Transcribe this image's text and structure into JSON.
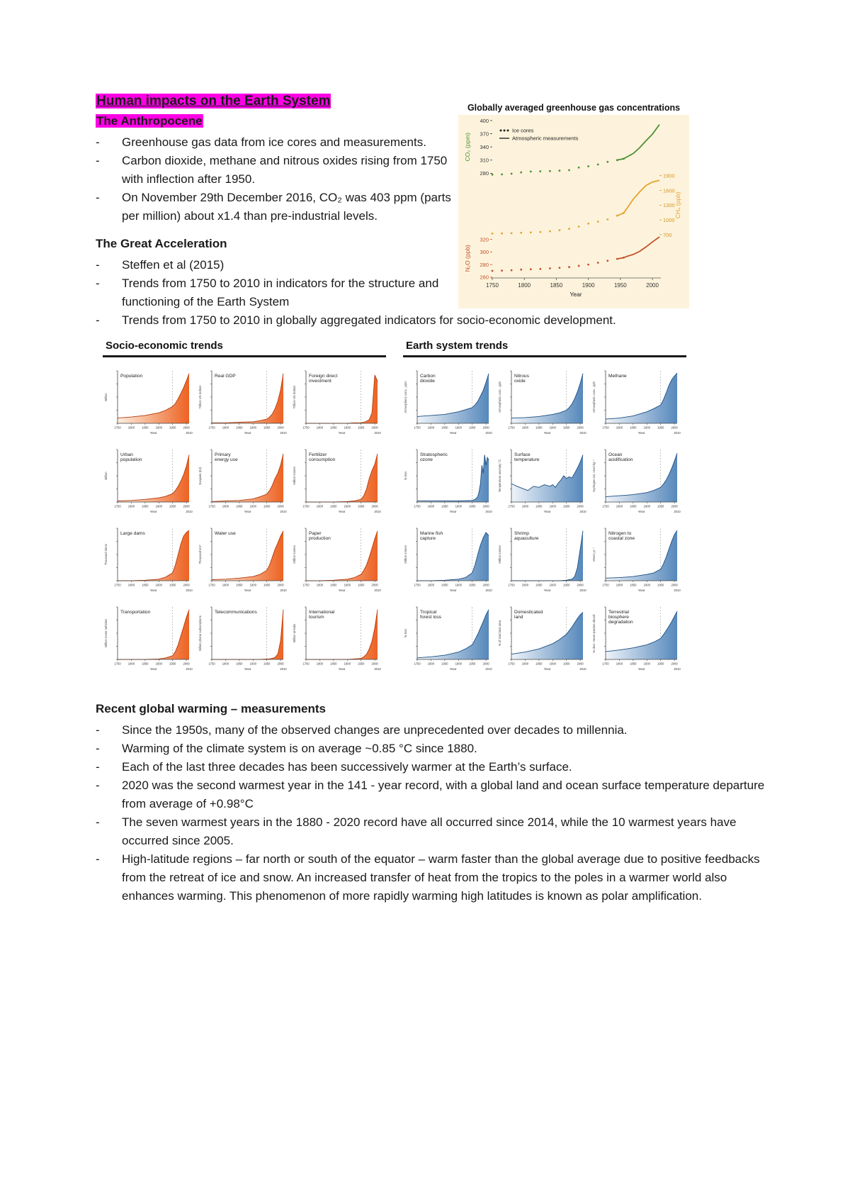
{
  "header": {
    "title": "Human impacts on the Earth System",
    "subheading": "The Anthropocene",
    "bullets": [
      "Greenhouse gas data from ice cores and measurements.",
      "Carbon dioxide, methane and nitrous oxides rising from 1750 with inflection after 1950.",
      "On November 29th December 2016, CO₂ was 403 ppm (parts per million) about x1.4 than pre-industrial levels."
    ]
  },
  "acceleration": {
    "heading": "The Great Acceleration",
    "bullets": [
      "Steffen et al (2015)",
      "Trends from 1750 to 2010 in indicators for the structure and functioning of the Earth System",
      "Trends from 1750 to 2010 in globally aggregated indicators for socio-economic development."
    ]
  },
  "figure": {
    "left_header": "Socio-economic trends",
    "right_header": "Earth system trends"
  },
  "warming": {
    "heading": "Recent global warming – measurements",
    "bullets": [
      "Since the 1950s, many of the observed changes are unprecedented over decades to millennia.",
      "Warming of the climate system is on average ~0.85 °C since 1880.",
      "Each of the last three decades has been successively warmer at the Earth’s surface.",
      "2020 was the second warmest year in the 141 - year record, with a global land and ocean surface temperature departure from average of +0.98°C",
      "The seven warmest years in the 1880 - 2020 record have all occurred since 2014, while the 10 warmest years have occurred since 2005.",
      "High-latitude regions – far north or south of the equator – warm faster than the global average due to positive feedbacks from the retreat of ice and snow. An increased transfer of heat from the tropics to the poles in a warmer world also enhances warming. This phenomenon of more rapidly warming high latitudes is known as polar amplification."
    ]
  },
  "colors": {
    "highlight": "#ff00e6",
    "chart_bg": "#fdf3dc",
    "socio_fill_from": "#fdeede",
    "socio_fill_to": "#ec5a17",
    "socio_line": "#b23a0a",
    "earth_fill_from": "#eef3f9",
    "earth_fill_to": "#4d82b8",
    "earth_line": "#1c4d80"
  },
  "chart_data": [
    {
      "type": "line",
      "title": "Globally averaged greenhouse gas concentrations",
      "xlabel": "Year",
      "x_ticks": [
        1750,
        1800,
        1850,
        1900,
        1950,
        2000
      ],
      "xlim": [
        1750,
        2011
      ],
      "legend": [
        {
          "label": "Ice cores",
          "marker": "dots"
        },
        {
          "label": "Atmospheric measurements",
          "marker": "line"
        }
      ],
      "series": [
        {
          "name": "CO₂ (ppm)",
          "color": "#4a9032",
          "tick_color": "#333333",
          "side": "left",
          "ticks": [
            280,
            310,
            340,
            370,
            400
          ],
          "ymap": [
            [
              280,
              0.335
            ],
            [
              400,
              0.0
            ]
          ],
          "x": [
            1750,
            1765,
            1780,
            1795,
            1810,
            1825,
            1840,
            1855,
            1870,
            1885,
            1900,
            1915,
            1930,
            1945,
            1955,
            1960,
            1970,
            1980,
            1990,
            2000,
            2011
          ],
          "values": [
            277,
            277.5,
            279,
            282,
            284,
            284.5,
            285,
            286,
            287,
            293,
            296,
            300,
            306,
            310,
            313,
            317,
            325,
            338,
            354,
            369,
            391
          ]
        },
        {
          "name": "CH₄ (ppb)",
          "color": "#e5a230",
          "tick_color": "#d3952a",
          "side": "right",
          "ticks": [
            700,
            1000,
            1300,
            1600,
            1900
          ],
          "ymap": [
            [
              700,
              0.725
            ],
            [
              1900,
              0.35
            ]
          ],
          "x": [
            1750,
            1765,
            1780,
            1795,
            1810,
            1825,
            1840,
            1855,
            1870,
            1885,
            1900,
            1915,
            1930,
            1945,
            1955,
            1960,
            1970,
            1980,
            1990,
            2000,
            2011
          ],
          "values": [
            722,
            725,
            730,
            738,
            745,
            755,
            770,
            790,
            820,
            865,
            925,
            965,
            1010,
            1085,
            1140,
            1230,
            1420,
            1570,
            1700,
            1770,
            1803
          ]
        },
        {
          "name": "N₂O (ppb)",
          "color": "#c3502b",
          "tick_color": "#c3502b",
          "side": "left",
          "ticks": [
            260,
            280,
            300,
            320
          ],
          "ymap": [
            [
              260,
              0.995
            ],
            [
              320,
              0.755
            ]
          ],
          "x": [
            1750,
            1765,
            1780,
            1795,
            1810,
            1825,
            1840,
            1855,
            1870,
            1885,
            1900,
            1915,
            1930,
            1945,
            1955,
            1960,
            1970,
            1980,
            1990,
            2000,
            2011
          ],
          "values": [
            270,
            270.5,
            271,
            272,
            272.5,
            273,
            274,
            275,
            276,
            278,
            280,
            283,
            286,
            289,
            291,
            293,
            296,
            301,
            308,
            316,
            324
          ]
        }
      ]
    },
    {
      "type": "area",
      "title": "Socio-economic trends",
      "xlabel": "Year",
      "x_ticks": [
        1750,
        1800,
        1850,
        1900,
        1950,
        2000
      ],
      "x_end_label": "2010",
      "x_default": [
        1750,
        1800,
        1850,
        1900,
        1925,
        1950,
        1960,
        1970,
        1980,
        1990,
        2000,
        2010
      ],
      "charts": [
        {
          "title": [
            "Population"
          ],
          "ylabel": "Billion",
          "values": [
            0.1,
            0.12,
            0.15,
            0.2,
            0.25,
            0.32,
            0.38,
            0.47,
            0.57,
            0.68,
            0.81,
            0.95
          ]
        },
        {
          "title": [
            "Real GDP"
          ],
          "ylabel": "Trillion US dollars",
          "values": [
            0.01,
            0.01,
            0.02,
            0.03,
            0.05,
            0.08,
            0.12,
            0.18,
            0.28,
            0.42,
            0.63,
            0.95
          ]
        },
        {
          "title": [
            "Foreign direct",
            "investment"
          ],
          "ylabel": "Trillion US dollars",
          "values": [
            0.0,
            0.0,
            0.0,
            0.0,
            0.01,
            0.01,
            0.02,
            0.04,
            0.07,
            0.2,
            0.92,
            0.8
          ]
        },
        {
          "title": [
            "Urban",
            "population"
          ],
          "ylabel": "Billion",
          "values": [
            0.02,
            0.03,
            0.05,
            0.08,
            0.11,
            0.16,
            0.22,
            0.3,
            0.4,
            0.52,
            0.68,
            0.9
          ]
        },
        {
          "title": [
            "Primary",
            "energy use"
          ],
          "ylabel": "Exajoule (EJ)",
          "values": [
            0.01,
            0.02,
            0.03,
            0.06,
            0.1,
            0.15,
            0.22,
            0.32,
            0.45,
            0.55,
            0.7,
            0.92
          ]
        },
        {
          "title": [
            "Fertilizer",
            "consumption"
          ],
          "ylabel": "Million tonnes",
          "values": [
            0.0,
            0.0,
            0.0,
            0.01,
            0.02,
            0.05,
            0.12,
            0.25,
            0.45,
            0.6,
            0.72,
            0.92
          ]
        },
        {
          "title": [
            "Large dams"
          ],
          "ylabel": "Thousand dams",
          "values": [
            0.0,
            0.0,
            0.01,
            0.03,
            0.07,
            0.15,
            0.3,
            0.5,
            0.7,
            0.85,
            0.92,
            0.96
          ]
        },
        {
          "title": [
            "Water use"
          ],
          "ylabel": "Thousand km³",
          "values": [
            0.02,
            0.03,
            0.05,
            0.08,
            0.12,
            0.2,
            0.3,
            0.45,
            0.6,
            0.72,
            0.85,
            0.95
          ]
        },
        {
          "title": [
            "Paper",
            "production"
          ],
          "ylabel": "Million tonnes",
          "values": [
            0.0,
            0.0,
            0.01,
            0.03,
            0.06,
            0.12,
            0.2,
            0.3,
            0.45,
            0.62,
            0.8,
            0.95
          ]
        },
        {
          "title": [
            "Transportation"
          ],
          "ylabel": "Million motor vehicles",
          "values": [
            0.0,
            0.0,
            0.0,
            0.01,
            0.03,
            0.07,
            0.15,
            0.28,
            0.45,
            0.62,
            0.8,
            0.95
          ]
        },
        {
          "title": [
            "Telecommunications"
          ],
          "ylabel": "Billion phone subscriptions",
          "values": [
            0,
            0,
            0,
            0,
            0,
            0.01,
            0.01,
            0.02,
            0.04,
            0.1,
            0.35,
            0.95
          ]
        },
        {
          "title": [
            "International",
            "tourism"
          ],
          "ylabel": "Million arrivals",
          "values": [
            0,
            0,
            0,
            0,
            0.01,
            0.02,
            0.05,
            0.1,
            0.2,
            0.35,
            0.6,
            0.95
          ]
        }
      ]
    },
    {
      "type": "area",
      "title": "Earth system trends",
      "xlabel": "Year",
      "x_ticks": [
        1750,
        1800,
        1850,
        1900,
        1950,
        2000
      ],
      "x_end_label": "2010",
      "x_default": [
        1750,
        1800,
        1850,
        1900,
        1925,
        1950,
        1960,
        1970,
        1980,
        1990,
        2000,
        2010
      ],
      "charts": [
        {
          "title": [
            "Carbon",
            "dioxide"
          ],
          "ylabel": "Atmospheric conc., ppm",
          "values": [
            0.13,
            0.15,
            0.17,
            0.22,
            0.26,
            0.3,
            0.35,
            0.42,
            0.52,
            0.63,
            0.78,
            0.95
          ]
        },
        {
          "title": [
            "Nitrous",
            "oxide"
          ],
          "ylabel": "Atmospheric conc., ppb",
          "values": [
            0.1,
            0.11,
            0.13,
            0.17,
            0.2,
            0.25,
            0.3,
            0.37,
            0.47,
            0.6,
            0.76,
            0.95
          ]
        },
        {
          "title": [
            "Methane"
          ],
          "ylabel": "Atmospheric conc., ppb",
          "values": [
            0.08,
            0.1,
            0.14,
            0.22,
            0.28,
            0.35,
            0.45,
            0.58,
            0.72,
            0.83,
            0.9,
            0.96
          ]
        },
        {
          "title": [
            "Stratospheric",
            "ozone"
          ],
          "ylabel": "% loss",
          "x": [
            1750,
            1900,
            1950,
            1960,
            1970,
            1975,
            1980,
            1985,
            1990,
            1995,
            2000,
            2005,
            2010
          ],
          "values": [
            0.02,
            0.02,
            0.03,
            0.05,
            0.1,
            0.2,
            0.35,
            0.7,
            0.55,
            0.9,
            0.7,
            0.85,
            0.8
          ]
        },
        {
          "title": [
            "Surface",
            "temperature"
          ],
          "ylabel": "Temperature anomaly °C",
          "x": [
            1750,
            1770,
            1790,
            1810,
            1830,
            1850,
            1870,
            1890,
            1900,
            1910,
            1920,
            1930,
            1940,
            1950,
            1960,
            1970,
            1980,
            1990,
            2000,
            2010
          ],
          "values": [
            0.35,
            0.3,
            0.26,
            0.22,
            0.3,
            0.28,
            0.33,
            0.3,
            0.33,
            0.28,
            0.36,
            0.42,
            0.5,
            0.45,
            0.48,
            0.46,
            0.55,
            0.65,
            0.76,
            0.9
          ]
        },
        {
          "title": [
            "Ocean",
            "acidification"
          ],
          "ylabel": "Hydrogen ion, nmol kg⁻¹",
          "values": [
            0.1,
            0.12,
            0.14,
            0.18,
            0.22,
            0.28,
            0.34,
            0.42,
            0.52,
            0.64,
            0.78,
            0.93
          ]
        },
        {
          "title": [
            "Marine fish",
            "capture"
          ],
          "ylabel": "Million tonnes",
          "values": [
            0.0,
            0.0,
            0.01,
            0.03,
            0.06,
            0.15,
            0.3,
            0.5,
            0.68,
            0.82,
            0.92,
            0.86
          ]
        },
        {
          "title": [
            "Shrimp",
            "aquaculture"
          ],
          "ylabel": "Million tonnes",
          "values": [
            0,
            0,
            0,
            0,
            0,
            0.01,
            0.02,
            0.03,
            0.08,
            0.25,
            0.6,
            0.95
          ]
        },
        {
          "title": [
            "Nitrogen to",
            "coastal zone"
          ],
          "ylabel": "Mtons yr⁻¹",
          "values": [
            0.05,
            0.06,
            0.08,
            0.12,
            0.15,
            0.22,
            0.32,
            0.45,
            0.6,
            0.75,
            0.88,
            0.96
          ]
        },
        {
          "title": [
            "Tropical",
            "forest loss"
          ],
          "ylabel": "% loss",
          "values": [
            0.03,
            0.05,
            0.08,
            0.14,
            0.2,
            0.28,
            0.38,
            0.48,
            0.6,
            0.72,
            0.85,
            0.95
          ]
        },
        {
          "title": [
            "Domesticated",
            "land"
          ],
          "ylabel": "% of total land area",
          "values": [
            0.1,
            0.14,
            0.2,
            0.3,
            0.38,
            0.48,
            0.55,
            0.62,
            0.7,
            0.78,
            0.85,
            0.9
          ]
        },
        {
          "title": [
            "Terrestrial",
            "biosphere",
            "degradation"
          ],
          "ylabel": "% decr. mean species abund.",
          "values": [
            0.15,
            0.18,
            0.22,
            0.28,
            0.33,
            0.4,
            0.47,
            0.55,
            0.63,
            0.72,
            0.82,
            0.92
          ]
        }
      ]
    }
  ]
}
